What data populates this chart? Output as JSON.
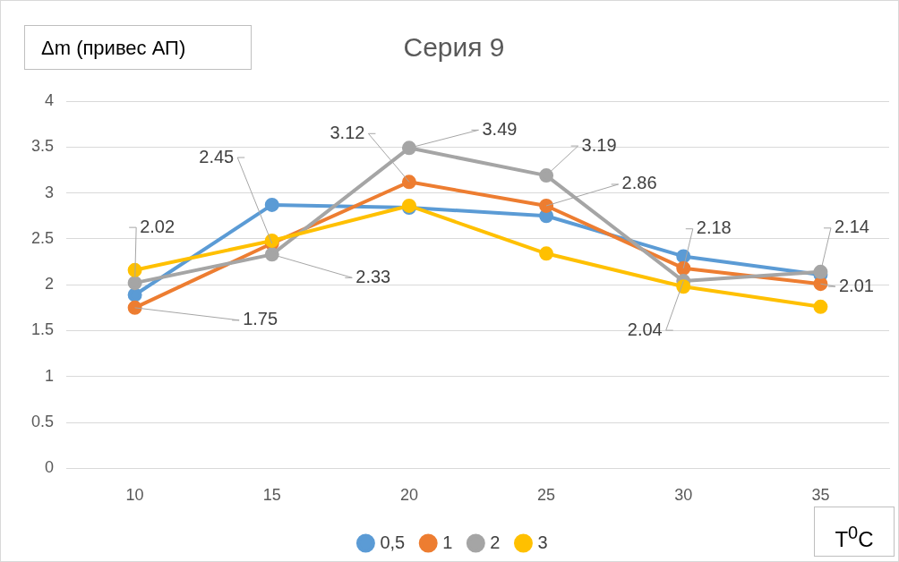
{
  "chart_data": {
    "type": "line",
    "title": "Серия 9",
    "ylabel": "Δm (привес АП)",
    "xlabel": "T$^{0}$C",
    "categories": [
      "10",
      "15",
      "20",
      "25",
      "30",
      "35"
    ],
    "series": [
      {
        "name": "0,5",
        "color": "#5b9bd5",
        "values": [
          1.89,
          2.87,
          2.84,
          2.75,
          2.31,
          2.11
        ]
      },
      {
        "name": "1",
        "color": "#ed7d31",
        "values": [
          1.75,
          2.45,
          3.12,
          2.86,
          2.18,
          2.01
        ],
        "value_labels": [
          "1.75",
          "2.45",
          "3.12",
          "2.86",
          "2.18",
          "2.01"
        ]
      },
      {
        "name": "2",
        "color": "#a5a5a5",
        "values": [
          2.02,
          2.33,
          3.49,
          3.19,
          2.04,
          2.14
        ],
        "value_labels": [
          "2.02",
          "2.33",
          "3.49",
          "3.19",
          "2.04",
          "2.14"
        ]
      },
      {
        "name": "3",
        "color": "#ffc000",
        "values": [
          2.16,
          2.48,
          2.86,
          2.34,
          1.98,
          1.76
        ]
      }
    ],
    "ylim": [
      0,
      4
    ],
    "yticks": [
      0,
      0.5,
      1,
      1.5,
      2,
      2.5,
      3,
      3.5,
      4
    ],
    "grid": "y",
    "legend": "bottom",
    "marker": "circle",
    "line_style": "solid"
  }
}
